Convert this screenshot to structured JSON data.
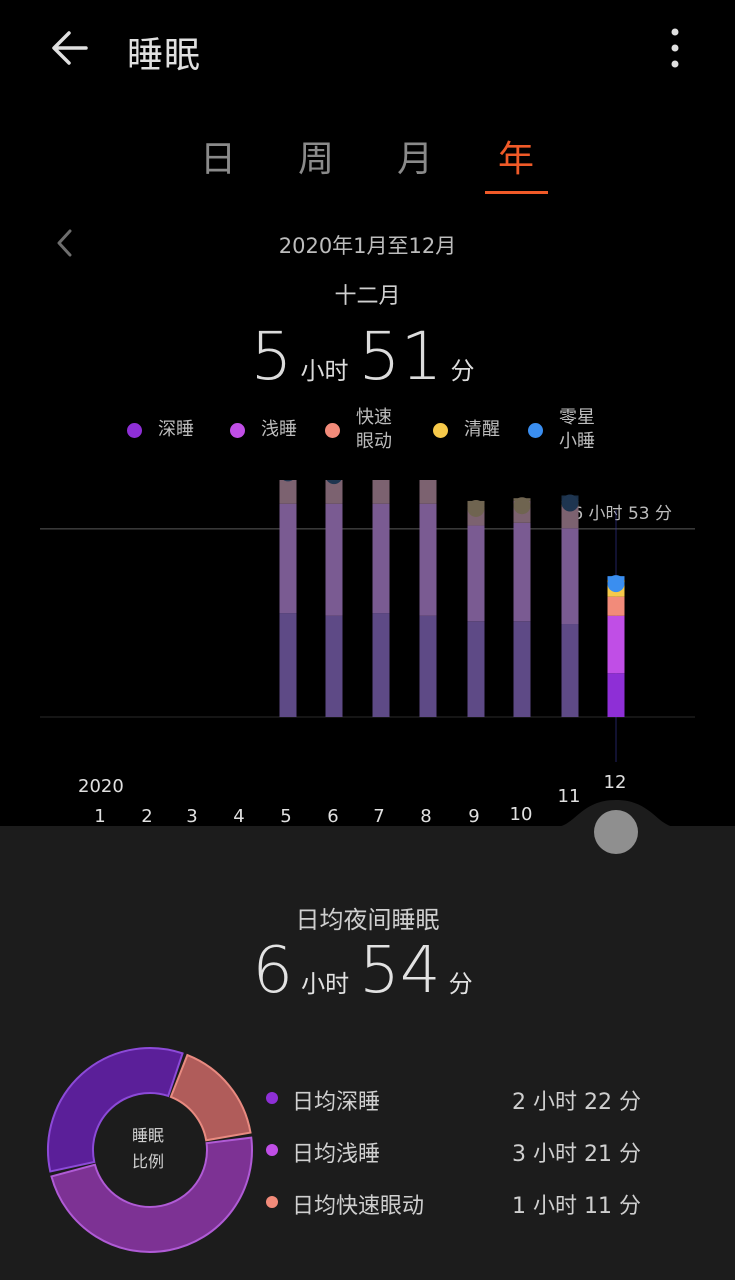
{
  "header": {
    "title": "睡眠",
    "back_icon": "arrow-left-icon",
    "more_icon": "more-vertical-icon"
  },
  "tabs": [
    {
      "label": "日",
      "active": false
    },
    {
      "label": "周",
      "active": false
    },
    {
      "label": "月",
      "active": false
    },
    {
      "label": "年",
      "active": true
    }
  ],
  "colors": {
    "accent": "#f05a28",
    "deep": "#8e2fd6",
    "light": "#c04ee6",
    "rem": "#f28b7a",
    "awake": "#f6c94a",
    "nap": "#3a8ef0"
  },
  "period": {
    "range": "2020年1月至12月",
    "selected_month": "十二月"
  },
  "selected_total": {
    "hours": "5",
    "hours_unit": "小时",
    "minutes": "51",
    "minutes_unit": "分"
  },
  "legend": [
    {
      "label": "深睡",
      "color": "#8e2fd6"
    },
    {
      "label": "浅睡",
      "color": "#c04ee6"
    },
    {
      "label": "快速\n眼动",
      "color": "#f28b7a"
    },
    {
      "label": "清醒",
      "color": "#f6c94a"
    },
    {
      "label": "零星\n小睡",
      "color": "#3a8ef0"
    }
  ],
  "chart": {
    "year": "2020",
    "months": [
      "1",
      "2",
      "3",
      "4",
      "5",
      "6",
      "7",
      "8",
      "9",
      "10",
      "11",
      "12"
    ],
    "reference_label": "6 小时 53 分",
    "reference_hours": 6.88,
    "max_hours": 8.3,
    "selected_month_index": 11,
    "stacks": [
      null,
      null,
      null,
      null,
      {
        "deep": 3.8,
        "light": 4.0,
        "rem": 1.0,
        "awake": 0.2,
        "nap": 0.2
      },
      {
        "deep": 3.7,
        "light": 4.1,
        "rem": 0.9,
        "awake": 0.2,
        "nap": 0.2
      },
      {
        "deep": 3.8,
        "light": 4.0,
        "rem": 1.1,
        "awake": 0.2,
        "nap": 0.2
      },
      {
        "deep": 3.7,
        "light": 4.1,
        "rem": 1.1,
        "awake": 0.2,
        "nap": 0.6
      },
      {
        "deep": 3.5,
        "light": 3.5,
        "rem": 0.7,
        "awake": 0.2,
        "nap": 0.0
      },
      {
        "deep": 3.5,
        "light": 3.6,
        "rem": 0.8,
        "awake": 0.1,
        "nap": 0.0
      },
      {
        "deep": 3.4,
        "light": 3.5,
        "rem": 0.8,
        "awake": 0.2,
        "nap": 0.2
      },
      {
        "deep": 1.6,
        "light": 2.1,
        "rem": 0.7,
        "awake": 0.6,
        "nap": 0.15
      }
    ]
  },
  "daily_avg": {
    "title": "日均夜间睡眠",
    "hours": "6",
    "hours_unit": "小时",
    "minutes": "54",
    "minutes_unit": "分"
  },
  "ratio": {
    "center_label": "睡眠\n比例",
    "segments": [
      {
        "name": "深睡",
        "hours": 2.37,
        "color": "#8e2fd6"
      },
      {
        "name": "浅睡",
        "hours": 3.35,
        "color": "#c04ee6"
      },
      {
        "name": "快速眼动",
        "hours": 1.18,
        "color": "#f28b7a"
      }
    ]
  },
  "stats": [
    {
      "label": "日均深睡",
      "value": "2 小时 22 分",
      "color": "#8e2fd6"
    },
    {
      "label": "日均浅睡",
      "value": "3 小时 21 分",
      "color": "#c04ee6"
    },
    {
      "label": "日均快速眼动",
      "value": "1 小时 11 分",
      "color": "#f28b7a"
    }
  ]
}
